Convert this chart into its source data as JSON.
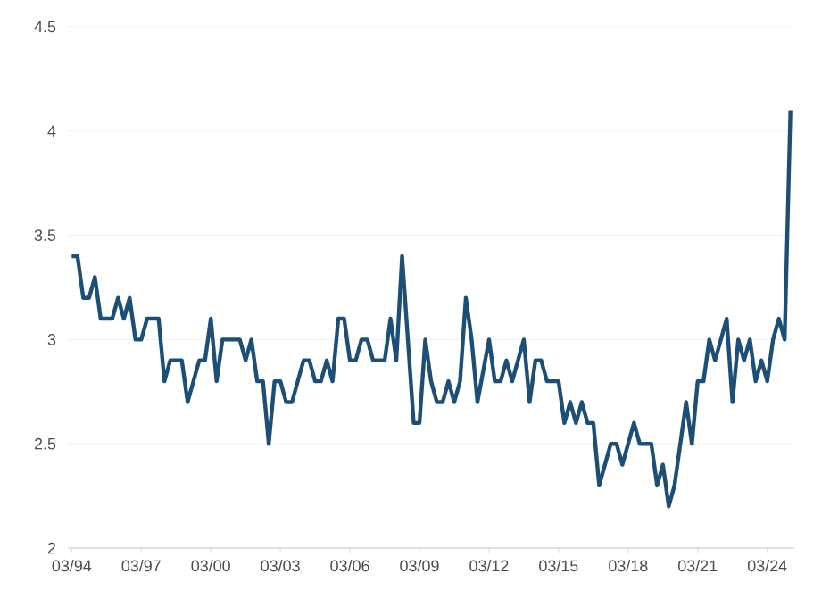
{
  "chart_data": {
    "type": "line",
    "color": "#1d4f76",
    "grid": "y",
    "marker": "none",
    "x": [
      "1994-03",
      "1994-06",
      "1994-09",
      "1994-12",
      "1995-03",
      "1995-06",
      "1995-12",
      "1996-03",
      "1996-06",
      "1996-09",
      "1996-12",
      "1997-03",
      "1997-06",
      "1997-12",
      "1998-03",
      "1998-06",
      "1998-12",
      "1999-03",
      "1999-09",
      "1999-12",
      "2000-03",
      "2000-06",
      "2000-09",
      "2001-06",
      "2001-09",
      "2001-12",
      "2002-03",
      "2002-06",
      "2002-09",
      "2002-12",
      "2003-03",
      "2003-06",
      "2003-09",
      "2004-03",
      "2004-06",
      "2004-09",
      "2004-12",
      "2005-03",
      "2005-06",
      "2005-09",
      "2005-12",
      "2006-03",
      "2006-06",
      "2006-09",
      "2006-12",
      "2007-03",
      "2007-09",
      "2007-12",
      "2008-03",
      "2008-06",
      "2008-12",
      "2009-03",
      "2009-06",
      "2009-09",
      "2009-12",
      "2010-03",
      "2010-06",
      "2010-09",
      "2010-12",
      "2011-03",
      "2011-06",
      "2011-09",
      "2012-03",
      "2012-06",
      "2012-09",
      "2012-12",
      "2013-03",
      "2013-06",
      "2013-09",
      "2013-12",
      "2014-03",
      "2014-06",
      "2014-09",
      "2015-03",
      "2015-06",
      "2015-09",
      "2015-12",
      "2016-03",
      "2016-06",
      "2016-09",
      "2016-12",
      "2017-03",
      "2017-06",
      "2017-09",
      "2017-12",
      "2018-03",
      "2018-06",
      "2018-09",
      "2019-03",
      "2019-06",
      "2019-09",
      "2019-12",
      "2020-03",
      "2020-06",
      "2020-09",
      "2020-12",
      "2021-03",
      "2021-06",
      "2021-09",
      "2021-12",
      "2022-06",
      "2022-09",
      "2022-12",
      "2023-03",
      "2023-06",
      "2023-09",
      "2023-12",
      "2024-03",
      "2024-06",
      "2024-09",
      "2024-12",
      "2025-03"
    ],
    "values": [
      3.4,
      3.4,
      3.2,
      3.2,
      3.3,
      3.1,
      3.1,
      3.2,
      3.1,
      3.2,
      3.0,
      3.0,
      3.1,
      3.1,
      2.8,
      2.9,
      2.9,
      2.7,
      2.9,
      2.9,
      3.1,
      2.8,
      3.0,
      3.0,
      2.9,
      3.0,
      2.8,
      2.8,
      2.5,
      2.8,
      2.8,
      2.7,
      2.7,
      2.9,
      2.9,
      2.8,
      2.8,
      2.9,
      2.8,
      3.1,
      3.1,
      2.9,
      2.9,
      3.0,
      3.0,
      2.9,
      2.9,
      3.1,
      2.9,
      3.4,
      2.6,
      2.6,
      3.0,
      2.8,
      2.7,
      2.7,
      2.8,
      2.7,
      2.8,
      3.2,
      3.0,
      2.7,
      3.0,
      2.8,
      2.8,
      2.9,
      2.8,
      2.9,
      3.0,
      2.7,
      2.9,
      2.9,
      2.8,
      2.8,
      2.6,
      2.7,
      2.6,
      2.7,
      2.6,
      2.6,
      2.3,
      2.4,
      2.5,
      2.5,
      2.4,
      2.5,
      2.6,
      2.5,
      2.5,
      2.3,
      2.4,
      2.2,
      2.3,
      2.5,
      2.7,
      2.5,
      2.8,
      2.8,
      3.0,
      2.9,
      3.1,
      2.7,
      3.0,
      2.9,
      3.0,
      2.8,
      2.9,
      2.8,
      3.0,
      3.1,
      3.0,
      4.1
    ],
    "xlim": [
      "1994-01",
      "2025-05"
    ],
    "xticks": [
      {
        "value": "1994-03",
        "label": "03/94"
      },
      {
        "value": "1997-03",
        "label": "03/97"
      },
      {
        "value": "2000-03",
        "label": "03/00"
      },
      {
        "value": "2003-03",
        "label": "03/03"
      },
      {
        "value": "2006-03",
        "label": "03/06"
      },
      {
        "value": "2009-03",
        "label": "03/09"
      },
      {
        "value": "2012-03",
        "label": "03/12"
      },
      {
        "value": "2015-03",
        "label": "03/15"
      },
      {
        "value": "2018-03",
        "label": "03/18"
      },
      {
        "value": "2021-03",
        "label": "03/21"
      },
      {
        "value": "2024-03",
        "label": "03/24"
      }
    ],
    "ylim": [
      2,
      4.5
    ],
    "yticks": [
      2,
      2.5,
      3,
      3.5,
      4,
      4.5
    ]
  }
}
